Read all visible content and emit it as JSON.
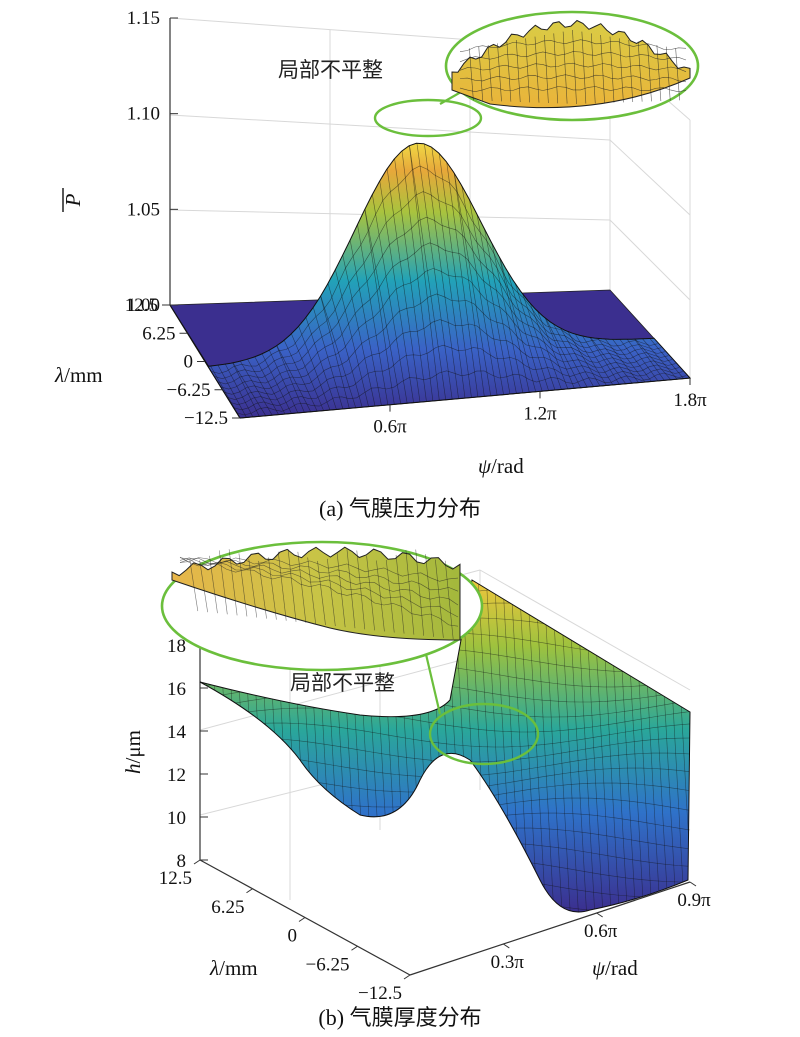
{
  "chart_data": [
    {
      "type": "surface",
      "caption": "(a) 气膜压力分布",
      "z_axis": {
        "label_symbol": "P",
        "ticks": [
          "1.00",
          "1.05",
          "1.10",
          "1.15"
        ],
        "range": [
          1.0,
          1.15
        ]
      },
      "y_axis": {
        "label_symbol": "λ",
        "label_unit": "/mm",
        "ticks": [
          "12.5",
          "6.25",
          "0",
          "−6.25",
          "−12.5"
        ],
        "range": [
          -12.5,
          12.5
        ]
      },
      "x_axis": {
        "label_symbol": "ψ",
        "label_unit": "/rad",
        "ticks": [
          "0.6π",
          "1.2π",
          "1.8π"
        ],
        "range_pi": [
          0,
          1.8
        ]
      },
      "peak_value": 1.11,
      "annotation": "局部不平整",
      "highlight_color": "#6bbf3c"
    },
    {
      "type": "surface",
      "caption": "(b) 气膜厚度分布",
      "z_axis": {
        "label_symbol": "h",
        "label_unit": "/μm",
        "ticks": [
          "8",
          "10",
          "12",
          "14",
          "16",
          "18"
        ],
        "range": [
          8,
          18
        ]
      },
      "y_axis": {
        "label_symbol": "λ",
        "label_unit": "/mm",
        "ticks": [
          "12.5",
          "6.25",
          "0",
          "−6.25",
          "−12.5"
        ],
        "range": [
          -12.5,
          12.5
        ]
      },
      "x_axis": {
        "label_symbol": "ψ",
        "label_unit": "/rad",
        "ticks": [
          "0.3π",
          "0.6π",
          "0.9π"
        ],
        "range_pi": [
          0,
          0.9
        ]
      },
      "annotation": "局部不平整",
      "highlight_color": "#6bbf3c"
    }
  ]
}
